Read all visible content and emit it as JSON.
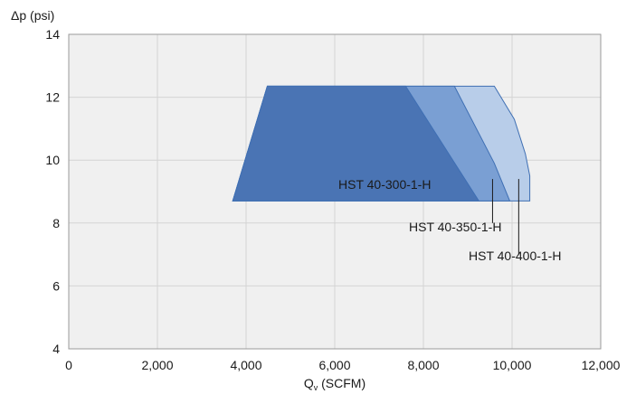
{
  "chart_data": {
    "type": "area",
    "title": "",
    "ylabel": "Δp (psi)",
    "xlabel_main": "Q",
    "xlabel_sub": "v",
    "xlabel_unit": " (SCFM)",
    "xlim": [
      0,
      12000
    ],
    "ylim": [
      4,
      14
    ],
    "xticks": [
      0,
      2000,
      4000,
      6000,
      8000,
      10000,
      12000
    ],
    "xtick_labels": [
      "0",
      "2,000",
      "4,000",
      "6,000",
      "8,000",
      "10,000",
      "12,000"
    ],
    "yticks": [
      4,
      6,
      8,
      10,
      12,
      14
    ],
    "ytick_labels": [
      "4",
      "6",
      "8",
      "10",
      "12",
      "14"
    ],
    "grid": true,
    "series": [
      {
        "name": "HST 40-400-1-H",
        "color": "#b8cde9",
        "points": [
          [
            3700,
            8.7
          ],
          [
            4480,
            12.35
          ],
          [
            9600,
            12.35
          ],
          [
            10050,
            11.3
          ],
          [
            10300,
            10.2
          ],
          [
            10400,
            9.5
          ],
          [
            10400,
            8.7
          ]
        ]
      },
      {
        "name": "HST 40-350-1-H",
        "color": "#7a9fd3",
        "points": [
          [
            3700,
            8.7
          ],
          [
            4480,
            12.35
          ],
          [
            8700,
            12.35
          ],
          [
            9600,
            9.9
          ],
          [
            9950,
            8.7
          ]
        ]
      },
      {
        "name": "HST 40-300-1-H",
        "color": "#4a74b4",
        "points": [
          [
            3700,
            8.7
          ],
          [
            4480,
            12.35
          ],
          [
            7600,
            12.35
          ],
          [
            9250,
            8.7
          ]
        ]
      }
    ],
    "annotations": [
      {
        "text": "HST 40-300-1-H",
        "anchor": "inside",
        "series": 2
      },
      {
        "text": "HST 40-350-1-H",
        "leader_x": 9560,
        "leader_y": [
          9.4,
          8.0
        ]
      },
      {
        "text": "HST 40-400-1-H",
        "leader_x": 10150,
        "leader_y": [
          9.4,
          7.0
        ]
      }
    ]
  }
}
